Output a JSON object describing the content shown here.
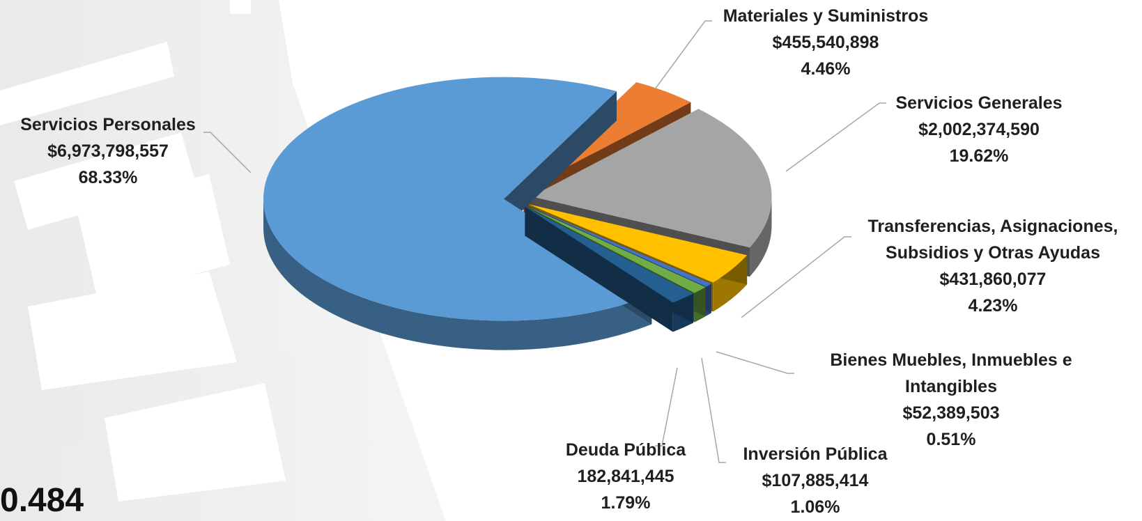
{
  "chart_data": {
    "type": "pie",
    "style": "3d-exploded",
    "title": "",
    "slices": [
      {
        "name": "Materiales y Suministros",
        "amount": "$455,540,898",
        "value": 455540898,
        "percent": "4.46%",
        "color": "#ED7D31"
      },
      {
        "name": "Servicios Generales",
        "amount": "$2,002,374,590",
        "value": 2002374590,
        "percent": "19.62%",
        "color": "#A5A5A5"
      },
      {
        "name": "Transferencias, Asignaciones, Subsidios y Otras Ayudas",
        "amount": "$431,860,077",
        "value": 431860077,
        "percent": "4.23%",
        "color": "#FFC000"
      },
      {
        "name": "Bienes Muebles, Inmuebles e Intangibles",
        "amount": "$52,389,503",
        "value": 52389503,
        "percent": "0.51%",
        "color": "#4472C4"
      },
      {
        "name": "Inversión Pública",
        "amount": "$107,885,414",
        "value": 107885414,
        "percent": "1.06%",
        "color": "#70AD47"
      },
      {
        "name": "Deuda Pública",
        "amount": "182,841,445",
        "value": 182841445,
        "percent": "1.79%",
        "color": "#255E91"
      },
      {
        "name": "Servicios Personales",
        "amount": "$6,973,798,557",
        "value": 6973798557,
        "percent": "68.33%",
        "color": "#5B9BD5"
      }
    ]
  },
  "labels": {
    "materiales": {
      "lines": [
        "Materiales y Suministros",
        "$455,540,898",
        "4.46%"
      ]
    },
    "servicios_generales": {
      "lines": [
        "Servicios Generales",
        "$2,002,374,590",
        "19.62%"
      ]
    },
    "transferencias": {
      "lines": [
        "Transferencias, Asignaciones,",
        "Subsidios y Otras Ayudas",
        "$431,860,077",
        "4.23%"
      ]
    },
    "bienes": {
      "lines": [
        "Bienes Muebles, Inmuebles e",
        "Intangibles",
        "$52,389,503",
        "0.51%"
      ]
    },
    "inversion": {
      "lines": [
        "Inversión Pública",
        "$107,885,414",
        "1.06%"
      ]
    },
    "deuda": {
      "lines": [
        "Deuda Pública",
        "182,841,445",
        "1.79%"
      ]
    },
    "servicios_personales": {
      "lines": [
        "Servicios Personales",
        "$6,973,798,557",
        "68.33%"
      ]
    }
  },
  "partial_total_text": "0.484"
}
